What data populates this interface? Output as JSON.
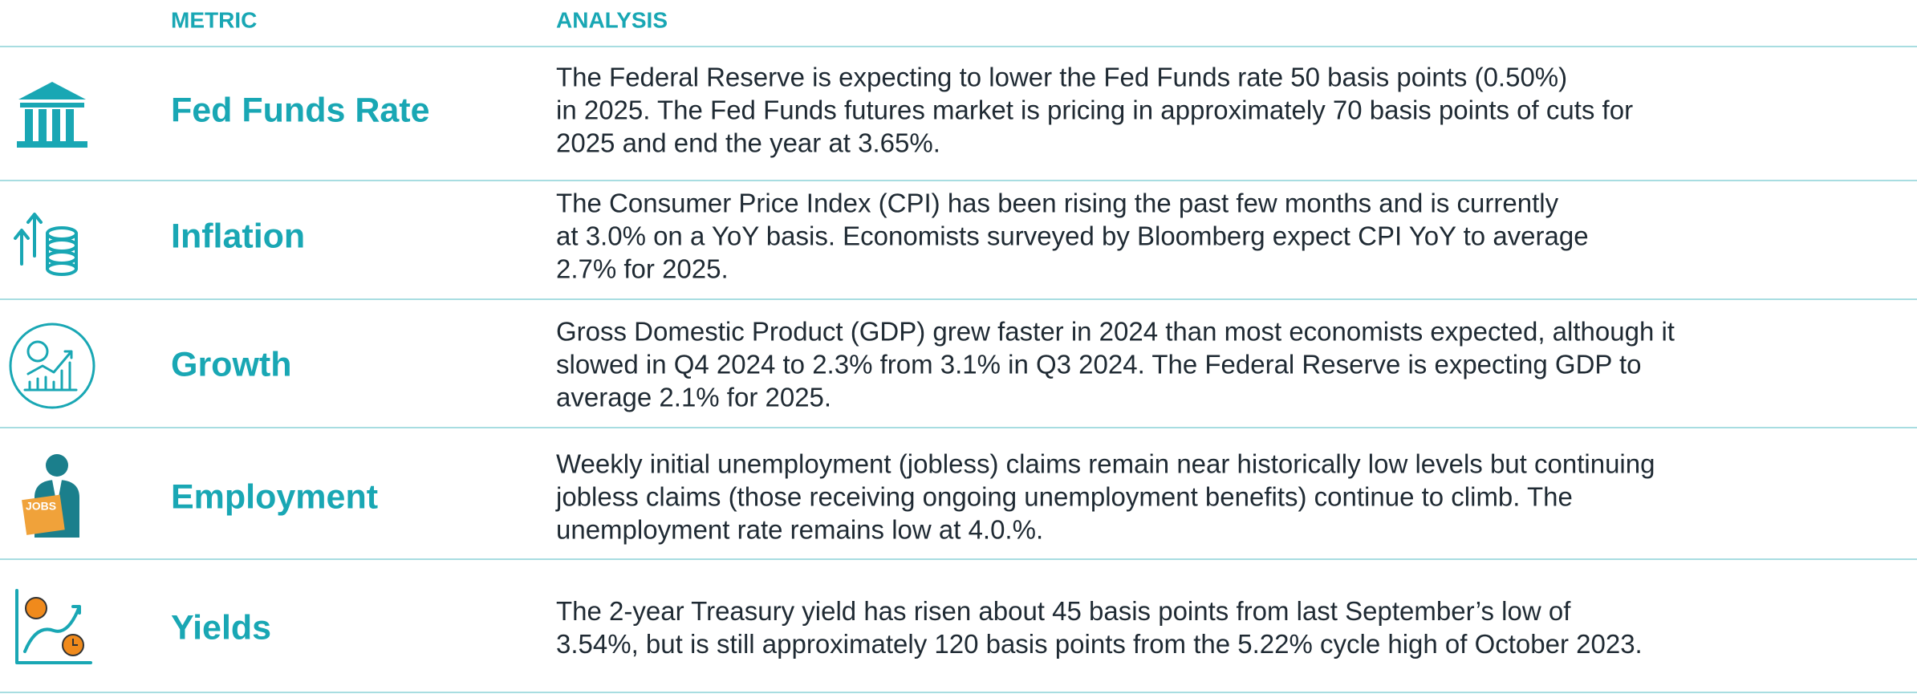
{
  "table": {
    "header": [
      "METRIC",
      "ANALYSIS"
    ],
    "rows": [
      {
        "metric": "Fed Funds Rate",
        "analysis": [
          "The Federal Reserve is expecting to lower the Fed Funds rate 50 basis points (0.50%)",
          "in 2025. The Fed Funds futures market is pricing in approximately 70 basis points of cuts for",
          "2025 and end the year at 3.65%."
        ]
      },
      {
        "metric": "Inflation",
        "analysis": [
          "The Consumer Price Index (CPI) has been rising the past few months and is currently",
          "at 3.0% on a YoY basis. Economists surveyed by Bloomberg expect CPI YoY to average",
          "2.7% for 2025."
        ]
      },
      {
        "metric": "Growth",
        "analysis": [
          "Gross Domestic Product (GDP) grew faster in 2024 than most economists expected, although it",
          "slowed in Q4 2024 to 2.3% from 3.1% in Q3 2024. The Federal Reserve is expecting GDP to",
          "average 2.1% for 2025."
        ]
      },
      {
        "metric": "Employment",
        "analysis": [
          "Weekly initial unemployment (jobless) claims remain near historically low levels but continuing",
          "jobless claims (those receiving ongoing unemployment benefits) continue to climb. The",
          "unemployment rate remains low at 4.0.%."
        ]
      },
      {
        "metric": "Yields",
        "analysis": [
          "The 2-year Treasury yield has risen about 45 basis points from last September’s low of",
          "3.54%, but is still approximately 120 basis points from the 5.22% cycle high of October 2023."
        ]
      }
    ],
    "icons": [
      "JOBS"
    ]
  }
}
